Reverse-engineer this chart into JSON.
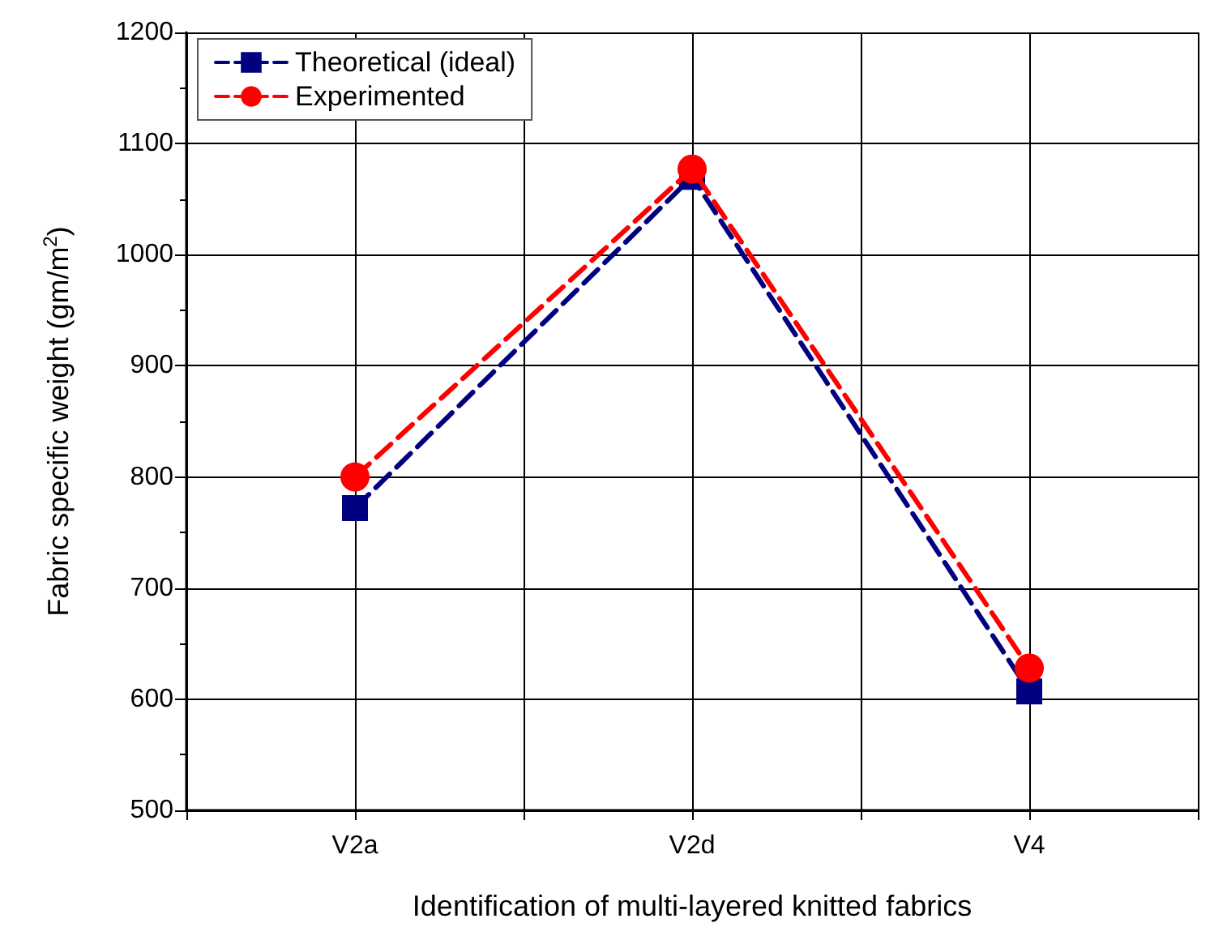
{
  "chart_data": {
    "type": "line",
    "xlabel": "Identification of multi-layered knitted fabrics",
    "ylabel": "Fabric specific weight (gm/m$^{2}$)",
    "categories": [
      "V2a",
      "V2d",
      "V4"
    ],
    "series": [
      {
        "name": "Theoretical (ideal)",
        "color": "#000080",
        "marker": "square",
        "values": [
          772,
          1070,
          607
        ]
      },
      {
        "name": "Experimented",
        "color": "#ff0000",
        "marker": "circle",
        "values": [
          800,
          1077,
          628
        ]
      }
    ],
    "line_style": "dashed",
    "ylim": [
      500,
      1200
    ],
    "yticks": [
      500,
      600,
      700,
      800,
      900,
      1000,
      1100,
      1200
    ],
    "grid": true,
    "legend": "top left"
  }
}
